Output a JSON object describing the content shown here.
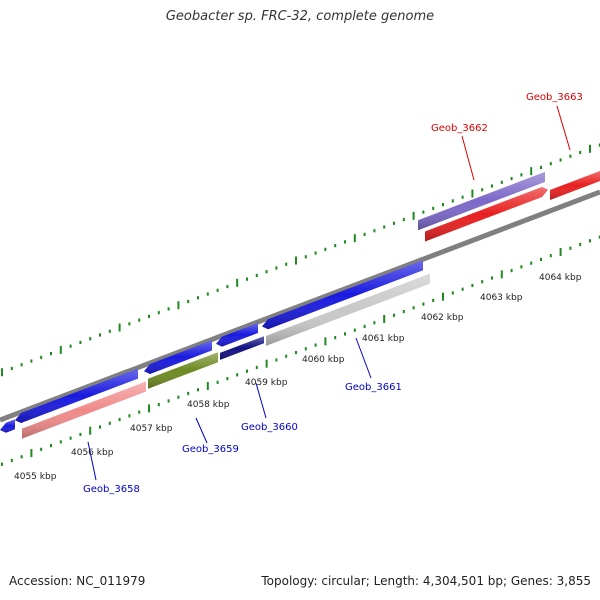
{
  "title": "Geobacter sp. FRC-32, complete genome",
  "footer": {
    "accession": "Accession: NC_011979",
    "topology": "Topology: circular; Length: 4,304,501 bp; Genes: 3,855"
  },
  "colors": {
    "tick": "#1f8a1f",
    "backbone": "#808080",
    "forward_label": "#dd0000",
    "reverse_label": "#0000cc"
  },
  "scale_labels": [
    "4055 kbp",
    "4056 kbp",
    "4057 kbp",
    "4058 kbp",
    "4059 kbp",
    "4060 kbp",
    "4061 kbp",
    "4062 kbp",
    "4063 kbp",
    "4064 kbp"
  ],
  "gene_labels": [
    {
      "name": "Geob_3658",
      "color": "#0000cc"
    },
    {
      "name": "Geob_3659",
      "color": "#0000cc"
    },
    {
      "name": "Geob_3660",
      "color": "#0000cc"
    },
    {
      "name": "Geob_3661",
      "color": "#0000cc"
    },
    {
      "name": "Geob_3662",
      "color": "#dd0000"
    },
    {
      "name": "Geob_3663",
      "color": "#dd0000"
    }
  ],
  "features": [
    {
      "type": "gene",
      "strand": "forward",
      "color": "#e82020"
    },
    {
      "type": "gene",
      "strand": "forward",
      "color": "#e82020"
    },
    {
      "type": "cds",
      "strand": "forward",
      "color": "#7b68c8"
    },
    {
      "type": "gene",
      "strand": "reverse",
      "color": "#1a1ae0"
    },
    {
      "type": "gene",
      "strand": "reverse",
      "color": "#1a1ae0"
    },
    {
      "type": "gene",
      "strand": "reverse",
      "color": "#1a1ae0"
    },
    {
      "type": "gene",
      "strand": "reverse",
      "color": "#1a1ae0"
    },
    {
      "type": "gene",
      "strand": "reverse",
      "color": "#1a1ae0"
    },
    {
      "type": "cds",
      "strand": "reverse",
      "color": "#f08a8a"
    },
    {
      "type": "cds",
      "strand": "reverse",
      "color": "#6e8a22"
    },
    {
      "type": "cds",
      "strand": "reverse",
      "color": "#101080"
    },
    {
      "type": "cds",
      "strand": "reverse",
      "color": "#c8c8c8"
    }
  ]
}
